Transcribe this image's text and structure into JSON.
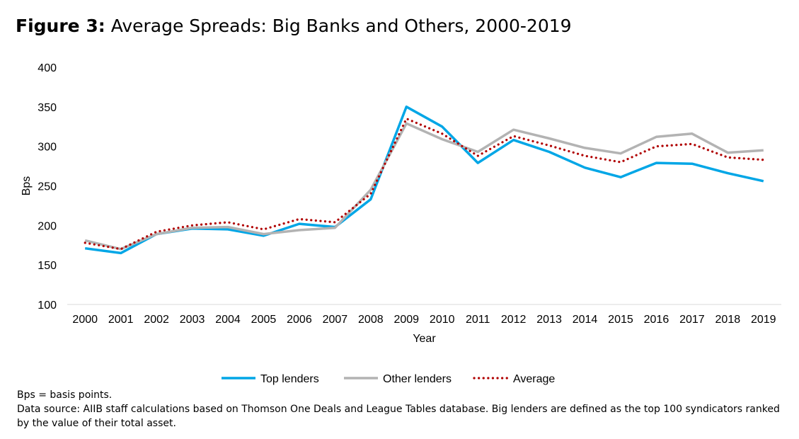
{
  "title": {
    "figure_label": "Figure 3:",
    "text": "Average Spreads: Big Banks and Others, 2000-2019"
  },
  "notes": {
    "line1": "Bps = basis points.",
    "line2": "Data source: AIIB staff calculations based on Thomson One Deals and League Tables database. Big lenders are defined as the top 100 syndicators ranked by the value of their total asset."
  },
  "chart_data": {
    "type": "line",
    "title": "Average Spreads: Big Banks and Others, 2000-2019",
    "xlabel": "Year",
    "ylabel": "Bps",
    "ylim": [
      100,
      400
    ],
    "yticks": [
      100,
      150,
      200,
      250,
      300,
      350,
      400
    ],
    "grid": false,
    "legend_position": "bottom",
    "categories": [
      "2000",
      "2001",
      "2002",
      "2003",
      "2004",
      "2005",
      "2006",
      "2007",
      "2008",
      "2009",
      "2010",
      "2011",
      "2012",
      "2013",
      "2014",
      "2015",
      "2016",
      "2017",
      "2018",
      "2019"
    ],
    "series": [
      {
        "name": "Top lenders",
        "color": "#00a6e6",
        "style": "solid",
        "values": [
          171,
          165,
          189,
          196,
          195,
          187,
          202,
          198,
          233,
          350,
          325,
          279,
          308,
          293,
          273,
          261,
          279,
          278,
          266,
          256
        ]
      },
      {
        "name": "Other lenders",
        "color": "#b3b3b3",
        "style": "solid",
        "values": [
          181,
          170,
          189,
          197,
          198,
          189,
          194,
          197,
          245,
          329,
          309,
          293,
          321,
          310,
          298,
          291,
          312,
          316,
          292,
          295
        ]
      },
      {
        "name": "Average",
        "color": "#b00000",
        "style": "dotted",
        "values": [
          178,
          170,
          192,
          200,
          204,
          195,
          208,
          204,
          240,
          335,
          316,
          288,
          313,
          301,
          288,
          280,
          300,
          303,
          286,
          283
        ]
      }
    ]
  }
}
